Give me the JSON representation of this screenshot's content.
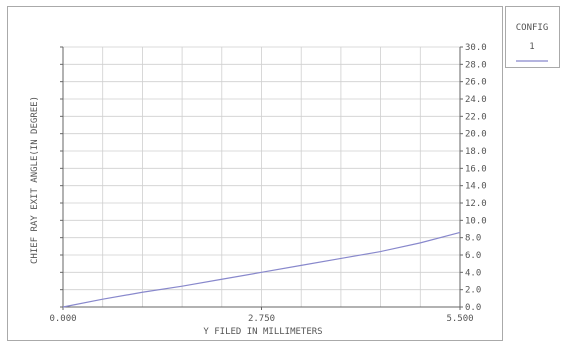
{
  "chart_data": {
    "type": "line",
    "title": "",
    "xlabel": "Y FILED IN MILLIMETERS",
    "ylabel": "CHIEF RAY EXIT ANGLE(IN DEGREE)",
    "xlim": [
      0,
      5.5
    ],
    "ylim": [
      0,
      30
    ],
    "x_ticks": [
      "0.000",
      "2.750",
      "5.500"
    ],
    "y_ticks": [
      "0.0",
      "2.0",
      "4.0",
      "6.0",
      "8.0",
      "10.0",
      "12.0",
      "14.0",
      "16.0",
      "18.0",
      "20.0",
      "22.0",
      "24.0",
      "26.0",
      "28.0",
      "30.0"
    ],
    "grid": true,
    "legend_position": "top-right",
    "legend_title": "CONFIG",
    "series": [
      {
        "name": "1",
        "color": "#8888cc",
        "x": [
          0.0,
          0.55,
          1.1,
          1.65,
          2.2,
          2.75,
          3.3,
          3.85,
          4.4,
          4.95,
          5.5
        ],
        "y": [
          0.0,
          0.9,
          1.7,
          2.4,
          3.2,
          4.0,
          4.8,
          5.6,
          6.4,
          7.4,
          8.6
        ]
      }
    ]
  }
}
